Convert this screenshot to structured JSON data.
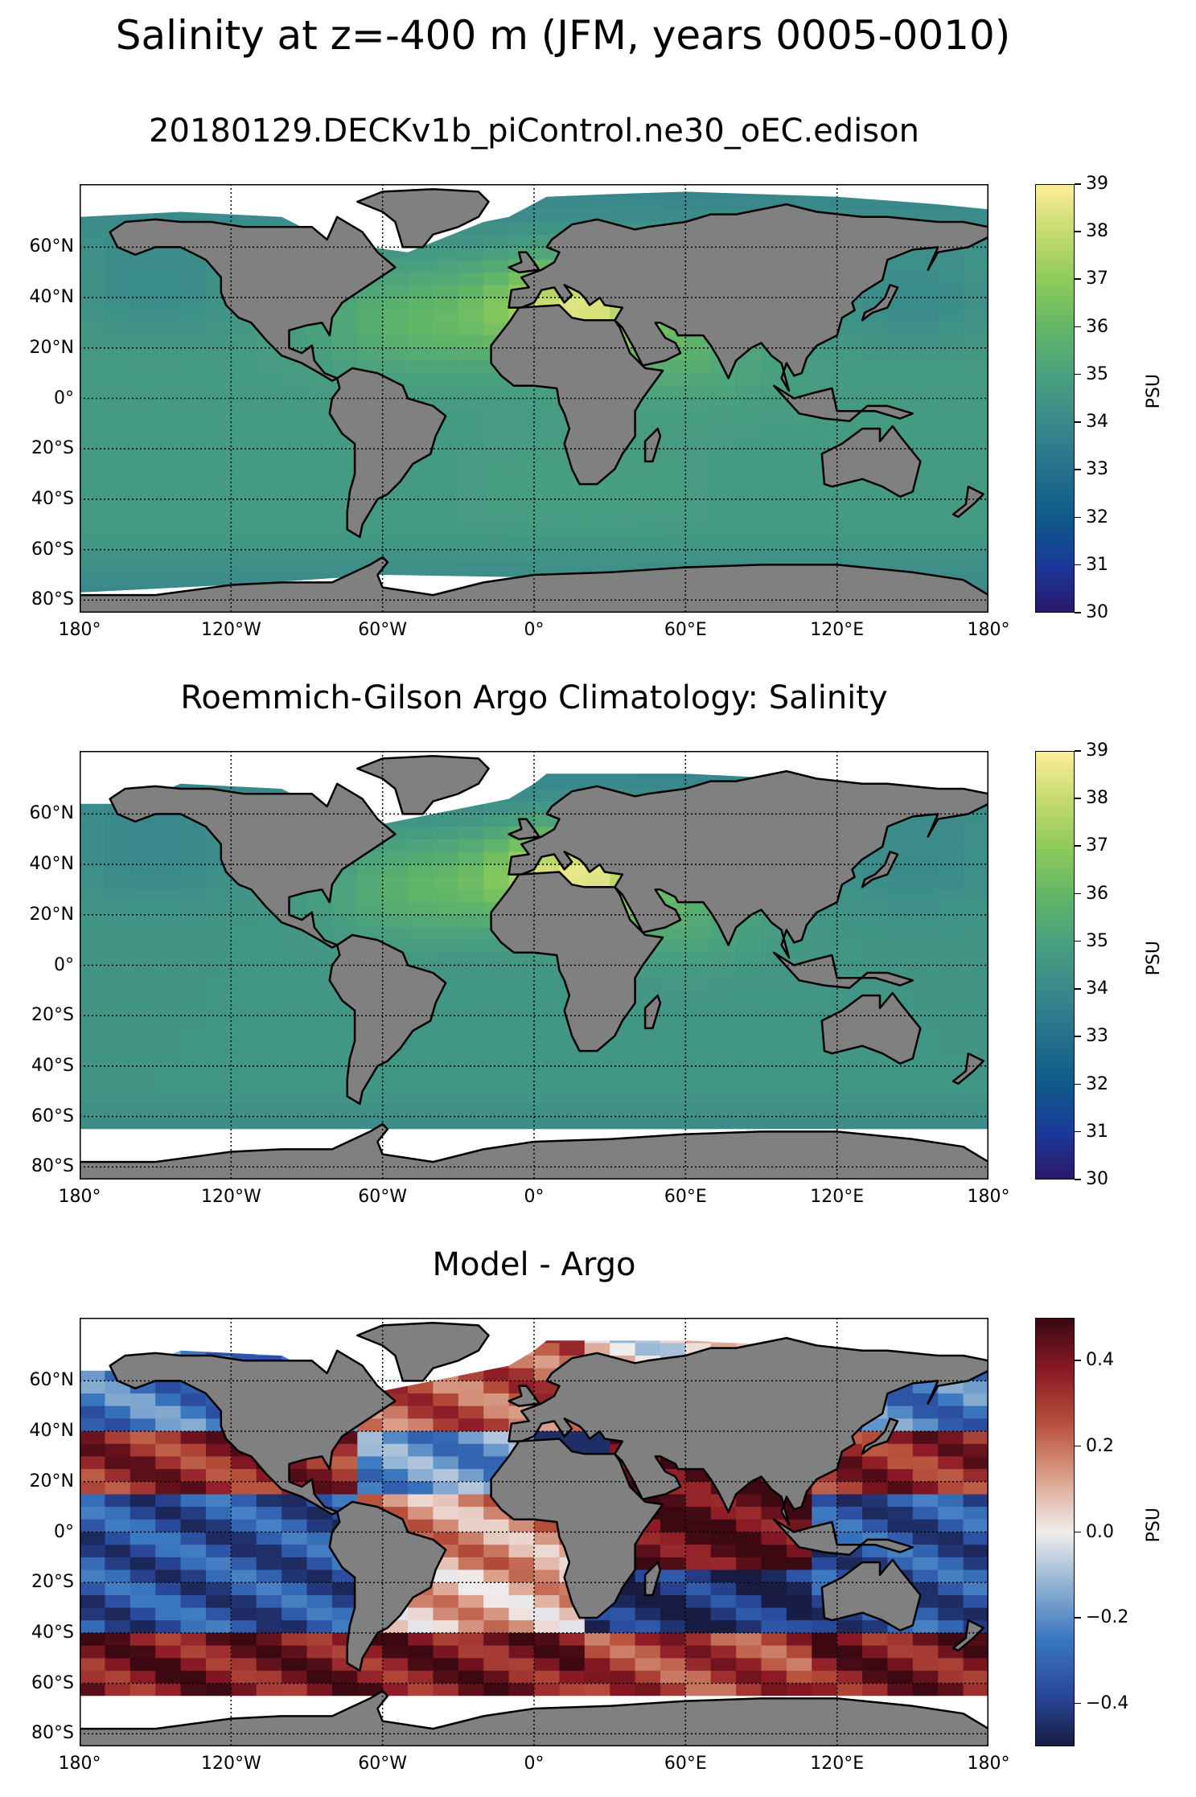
{
  "figure": {
    "title": "Salinity at z=-400 m (JFM, years 0005-0010)"
  },
  "colors": {
    "land": "#808080",
    "nodata": "#ffffff",
    "haline": [
      "#2a186c",
      "#1b3a9a",
      "#0f5a89",
      "#25718b",
      "#3a8a8c",
      "#4aa17e",
      "#62b667",
      "#8ecb5a",
      "#c5db6d",
      "#fdee99"
    ],
    "balance": [
      "#181c43",
      "#2a4a9e",
      "#3a78c0",
      "#8fb1d2",
      "#f1eded",
      "#dba28d",
      "#b8533d",
      "#8d1a26",
      "#3c0912"
    ]
  },
  "chart_data": [
    {
      "type": "heatmap",
      "title": "20180129.DECKv1b_piControl.ne30_oEC.edison",
      "projection": "plate-carree",
      "xlim": [
        -180,
        180
      ],
      "ylim": [
        -85,
        85
      ],
      "xticks": [
        -180,
        -120,
        -60,
        0,
        60,
        120,
        180
      ],
      "xtick_labels": [
        "180°",
        "120°W",
        "60°W",
        "0°",
        "60°E",
        "120°E",
        "180°"
      ],
      "yticks": [
        60,
        40,
        20,
        0,
        -20,
        -40,
        -60,
        -80
      ],
      "ytick_labels": [
        "60°N",
        "40°N",
        "20°N",
        "0°",
        "20°S",
        "40°S",
        "60°S",
        "80°S"
      ],
      "grid": true,
      "colormap": "haline",
      "colorbar": {
        "vmin": 30,
        "vmax": 39,
        "ticks": [
          30,
          31,
          32,
          33,
          34,
          35,
          36,
          37,
          38,
          39
        ],
        "tick_labels": [
          "30",
          "31",
          "32",
          "33",
          "34",
          "35",
          "36",
          "37",
          "38",
          "39"
        ],
        "label": "PSU"
      },
      "values_description_points": {
        "background": 34.7,
        "regions": [
          {
            "lon": -45,
            "lat": 30,
            "value": 35.9
          },
          {
            "lon": 18,
            "lat": 36,
            "value": 38.4
          },
          {
            "lon": 60,
            "lat": 18,
            "value": 35.5
          },
          {
            "lon": 20,
            "lat": -35,
            "value": 34.9
          },
          {
            "lon": -150,
            "lat": 45,
            "value": 34.0
          },
          {
            "lon": 150,
            "lat": 40,
            "value": 34.0
          }
        ]
      }
    },
    {
      "type": "heatmap",
      "title": "Roemmich-Gilson Argo Climatology: Salinity",
      "projection": "plate-carree",
      "xlim": [
        -180,
        180
      ],
      "ylim": [
        -85,
        85
      ],
      "xticks": [
        -180,
        -120,
        -60,
        0,
        60,
        120,
        180
      ],
      "xtick_labels": [
        "180°",
        "120°W",
        "60°W",
        "0°",
        "60°E",
        "120°E",
        "180°"
      ],
      "yticks": [
        60,
        40,
        20,
        0,
        -20,
        -40,
        -60,
        -80
      ],
      "ytick_labels": [
        "60°N",
        "40°N",
        "20°N",
        "0°",
        "20°S",
        "40°S",
        "60°S",
        "80°S"
      ],
      "grid": true,
      "colormap": "haline",
      "data_lat_range": [
        -65,
        80
      ],
      "colorbar": {
        "vmin": 30,
        "vmax": 39,
        "ticks": [
          30,
          31,
          32,
          33,
          34,
          35,
          36,
          37,
          38,
          39
        ],
        "tick_labels": [
          "30",
          "31",
          "32",
          "33",
          "34",
          "35",
          "36",
          "37",
          "38",
          "39"
        ],
        "label": "PSU"
      },
      "values_description_points": {
        "background": 34.5,
        "regions": [
          {
            "lon": -45,
            "lat": 30,
            "value": 35.8
          },
          {
            "lon": 18,
            "lat": 36,
            "value": 38.6
          },
          {
            "lon": 60,
            "lat": 18,
            "value": 35.2
          },
          {
            "lon": -150,
            "lat": 45,
            "value": 33.9
          },
          {
            "lon": 150,
            "lat": 40,
            "value": 34.0
          }
        ]
      }
    },
    {
      "type": "heatmap",
      "title": "Model - Argo",
      "projection": "plate-carree",
      "xlim": [
        -180,
        180
      ],
      "ylim": [
        -85,
        85
      ],
      "xticks": [
        -180,
        -120,
        -60,
        0,
        60,
        120,
        180
      ],
      "xtick_labels": [
        "180°",
        "120°W",
        "60°W",
        "0°",
        "60°E",
        "120°E",
        "180°"
      ],
      "yticks": [
        60,
        40,
        20,
        0,
        -20,
        -40,
        -60,
        -80
      ],
      "ytick_labels": [
        "60°N",
        "40°N",
        "20°N",
        "0°",
        "20°S",
        "40°S",
        "60°S",
        "80°S"
      ],
      "grid": true,
      "colormap": "balance",
      "data_lat_range": [
        -65,
        80
      ],
      "colorbar": {
        "vmin": -0.5,
        "vmax": 0.5,
        "ticks": [
          -0.4,
          -0.2,
          0.0,
          0.2,
          0.4
        ],
        "tick_labels": [
          "−0.4",
          "−0.2",
          "0.0",
          "0.2",
          "0.4"
        ],
        "label": "PSU"
      },
      "values_description_points": {
        "bands": [
          {
            "lat_from": 80,
            "lat_to": 40,
            "pacific": -0.25,
            "atlantic": 0.25,
            "indian": 0.0
          },
          {
            "lat_from": 40,
            "lat_to": 15,
            "pacific": 0.35,
            "atlantic": -0.2,
            "indian": 0.45
          },
          {
            "lat_from": 15,
            "lat_to": -15,
            "pacific": -0.35,
            "atlantic": 0.15,
            "indian": 0.45
          },
          {
            "lat_from": -15,
            "lat_to": -40,
            "pacific": -0.35,
            "atlantic": 0.1,
            "indian": -0.45
          },
          {
            "lat_from": -40,
            "lat_to": -65,
            "pacific": 0.4,
            "atlantic": 0.4,
            "indian": 0.3
          }
        ],
        "mediterranean": -0.45
      }
    }
  ]
}
